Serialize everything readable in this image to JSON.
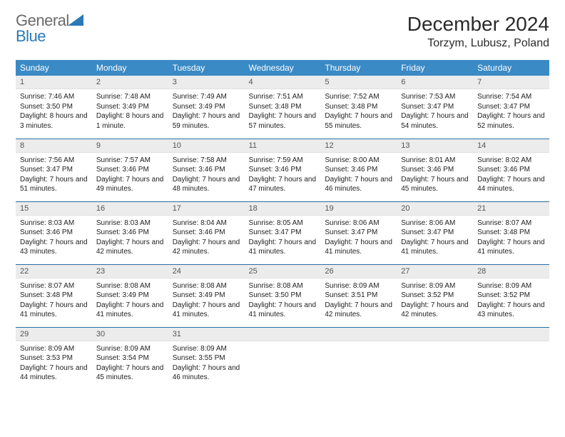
{
  "logo": {
    "word1": "General",
    "word2": "Blue",
    "accent_color": "#2a7ab8",
    "text_color": "#6b6b6b"
  },
  "title": "December 2024",
  "location": "Torzym, Lubusz, Poland",
  "colors": {
    "header_bg": "#3a8ac5",
    "header_fg": "#ffffff",
    "row_divider": "#2a6ea3",
    "dayhead_bg": "#ececec",
    "dayhead_fg": "#555555",
    "body_fg": "#222222",
    "page_bg": "#ffffff"
  },
  "day_headers": [
    "Sunday",
    "Monday",
    "Tuesday",
    "Wednesday",
    "Thursday",
    "Friday",
    "Saturday"
  ],
  "weeks": [
    [
      {
        "n": "1",
        "sunrise": "7:46 AM",
        "sunset": "3:50 PM",
        "daylight": "8 hours and 3 minutes."
      },
      {
        "n": "2",
        "sunrise": "7:48 AM",
        "sunset": "3:49 PM",
        "daylight": "8 hours and 1 minute."
      },
      {
        "n": "3",
        "sunrise": "7:49 AM",
        "sunset": "3:49 PM",
        "daylight": "7 hours and 59 minutes."
      },
      {
        "n": "4",
        "sunrise": "7:51 AM",
        "sunset": "3:48 PM",
        "daylight": "7 hours and 57 minutes."
      },
      {
        "n": "5",
        "sunrise": "7:52 AM",
        "sunset": "3:48 PM",
        "daylight": "7 hours and 55 minutes."
      },
      {
        "n": "6",
        "sunrise": "7:53 AM",
        "sunset": "3:47 PM",
        "daylight": "7 hours and 54 minutes."
      },
      {
        "n": "7",
        "sunrise": "7:54 AM",
        "sunset": "3:47 PM",
        "daylight": "7 hours and 52 minutes."
      }
    ],
    [
      {
        "n": "8",
        "sunrise": "7:56 AM",
        "sunset": "3:47 PM",
        "daylight": "7 hours and 51 minutes."
      },
      {
        "n": "9",
        "sunrise": "7:57 AM",
        "sunset": "3:46 PM",
        "daylight": "7 hours and 49 minutes."
      },
      {
        "n": "10",
        "sunrise": "7:58 AM",
        "sunset": "3:46 PM",
        "daylight": "7 hours and 48 minutes."
      },
      {
        "n": "11",
        "sunrise": "7:59 AM",
        "sunset": "3:46 PM",
        "daylight": "7 hours and 47 minutes."
      },
      {
        "n": "12",
        "sunrise": "8:00 AM",
        "sunset": "3:46 PM",
        "daylight": "7 hours and 46 minutes."
      },
      {
        "n": "13",
        "sunrise": "8:01 AM",
        "sunset": "3:46 PM",
        "daylight": "7 hours and 45 minutes."
      },
      {
        "n": "14",
        "sunrise": "8:02 AM",
        "sunset": "3:46 PM",
        "daylight": "7 hours and 44 minutes."
      }
    ],
    [
      {
        "n": "15",
        "sunrise": "8:03 AM",
        "sunset": "3:46 PM",
        "daylight": "7 hours and 43 minutes."
      },
      {
        "n": "16",
        "sunrise": "8:03 AM",
        "sunset": "3:46 PM",
        "daylight": "7 hours and 42 minutes."
      },
      {
        "n": "17",
        "sunrise": "8:04 AM",
        "sunset": "3:46 PM",
        "daylight": "7 hours and 42 minutes."
      },
      {
        "n": "18",
        "sunrise": "8:05 AM",
        "sunset": "3:47 PM",
        "daylight": "7 hours and 41 minutes."
      },
      {
        "n": "19",
        "sunrise": "8:06 AM",
        "sunset": "3:47 PM",
        "daylight": "7 hours and 41 minutes."
      },
      {
        "n": "20",
        "sunrise": "8:06 AM",
        "sunset": "3:47 PM",
        "daylight": "7 hours and 41 minutes."
      },
      {
        "n": "21",
        "sunrise": "8:07 AM",
        "sunset": "3:48 PM",
        "daylight": "7 hours and 41 minutes."
      }
    ],
    [
      {
        "n": "22",
        "sunrise": "8:07 AM",
        "sunset": "3:48 PM",
        "daylight": "7 hours and 41 minutes."
      },
      {
        "n": "23",
        "sunrise": "8:08 AM",
        "sunset": "3:49 PM",
        "daylight": "7 hours and 41 minutes."
      },
      {
        "n": "24",
        "sunrise": "8:08 AM",
        "sunset": "3:49 PM",
        "daylight": "7 hours and 41 minutes."
      },
      {
        "n": "25",
        "sunrise": "8:08 AM",
        "sunset": "3:50 PM",
        "daylight": "7 hours and 41 minutes."
      },
      {
        "n": "26",
        "sunrise": "8:09 AM",
        "sunset": "3:51 PM",
        "daylight": "7 hours and 42 minutes."
      },
      {
        "n": "27",
        "sunrise": "8:09 AM",
        "sunset": "3:52 PM",
        "daylight": "7 hours and 42 minutes."
      },
      {
        "n": "28",
        "sunrise": "8:09 AM",
        "sunset": "3:52 PM",
        "daylight": "7 hours and 43 minutes."
      }
    ],
    [
      {
        "n": "29",
        "sunrise": "8:09 AM",
        "sunset": "3:53 PM",
        "daylight": "7 hours and 44 minutes."
      },
      {
        "n": "30",
        "sunrise": "8:09 AM",
        "sunset": "3:54 PM",
        "daylight": "7 hours and 45 minutes."
      },
      {
        "n": "31",
        "sunrise": "8:09 AM",
        "sunset": "3:55 PM",
        "daylight": "7 hours and 46 minutes."
      },
      null,
      null,
      null,
      null
    ]
  ],
  "labels": {
    "sunrise": "Sunrise:",
    "sunset": "Sunset:",
    "daylight": "Daylight:"
  }
}
